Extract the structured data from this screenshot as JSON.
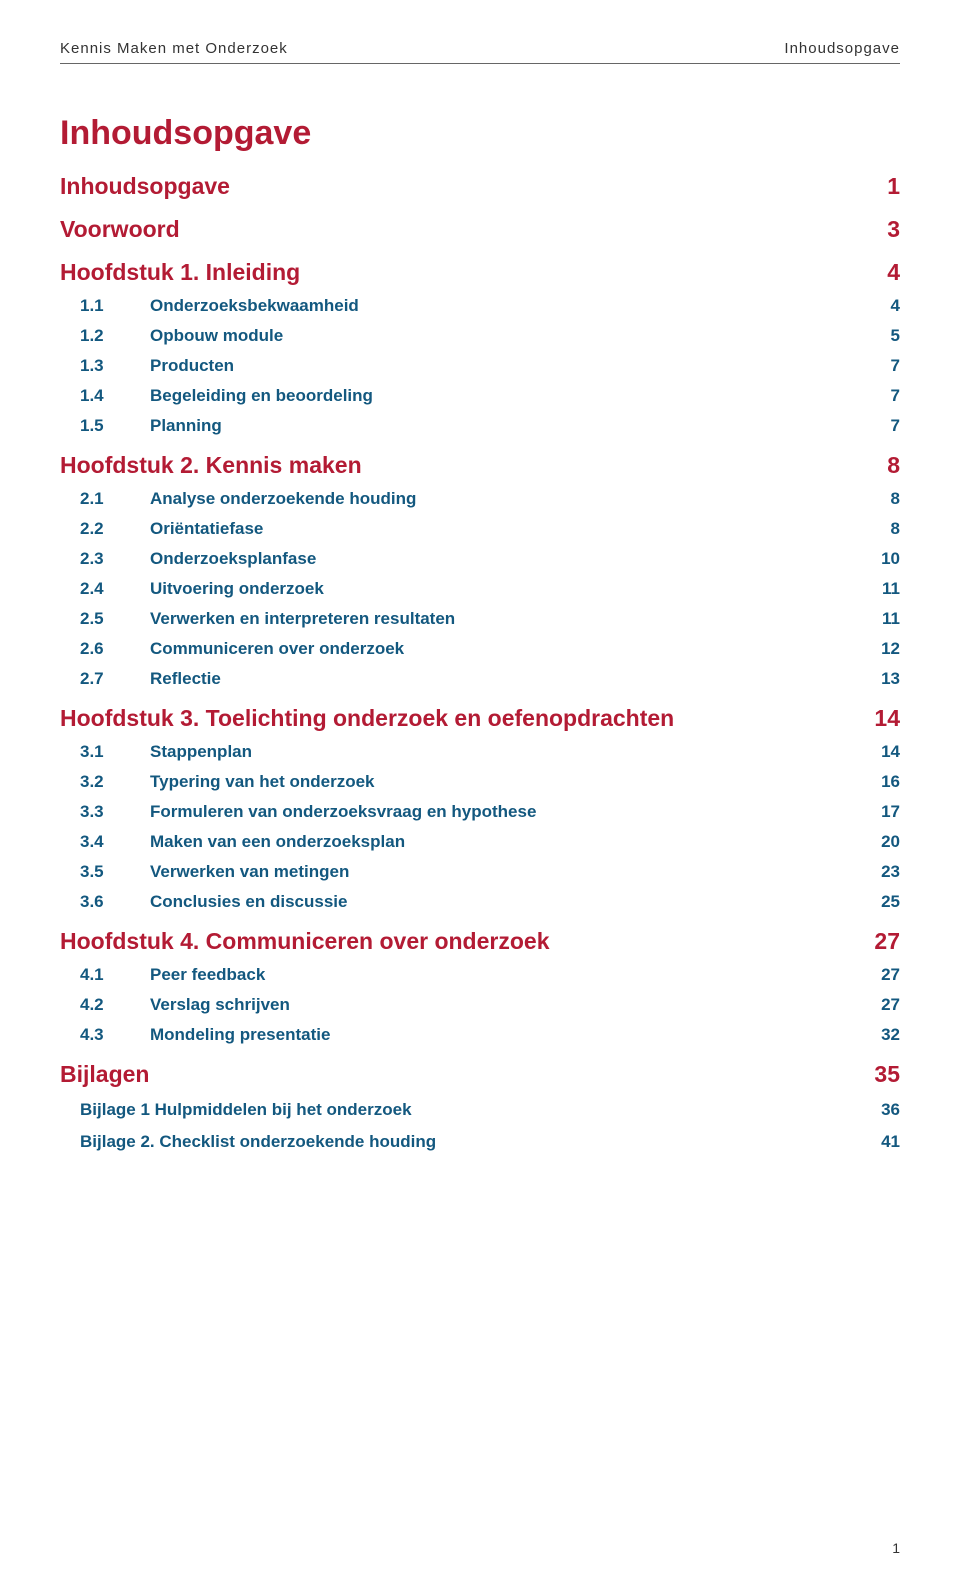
{
  "header": {
    "left": "Kennis Maken met Onderzoek",
    "right": "Inhoudsopgave"
  },
  "main_title": "Inhoudsopgave",
  "colors": {
    "chapter": "#b31b34",
    "sub": "#13587f",
    "header_text": "#333333",
    "rule": "#666666",
    "background": "#ffffff"
  },
  "toc": [
    {
      "type": "chapter",
      "label": "Inhoudsopgave",
      "page": "1"
    },
    {
      "type": "chapter",
      "label": "Voorwoord",
      "page": "3"
    },
    {
      "type": "chapter",
      "label": "Hoofdstuk 1. Inleiding",
      "page": "4"
    },
    {
      "type": "sub",
      "num": "1.1",
      "label": "Onderzoeksbekwaamheid",
      "page": "4"
    },
    {
      "type": "sub",
      "num": "1.2",
      "label": "Opbouw module",
      "page": "5"
    },
    {
      "type": "sub",
      "num": "1.3",
      "label": "Producten",
      "page": "7"
    },
    {
      "type": "sub",
      "num": "1.4",
      "label": "Begeleiding en beoordeling",
      "page": "7"
    },
    {
      "type": "sub",
      "num": "1.5",
      "label": "Planning",
      "page": "7"
    },
    {
      "type": "chapter",
      "label": "Hoofdstuk 2. Kennis maken",
      "page": "8"
    },
    {
      "type": "sub",
      "num": "2.1",
      "label": "Analyse onderzoekende houding",
      "page": "8"
    },
    {
      "type": "sub",
      "num": "2.2",
      "label": "Oriëntatiefase",
      "page": "8"
    },
    {
      "type": "sub",
      "num": "2.3",
      "label": "Onderzoeksplanfase",
      "page": "10"
    },
    {
      "type": "sub",
      "num": "2.4",
      "label": "Uitvoering onderzoek",
      "page": "11"
    },
    {
      "type": "sub",
      "num": "2.5",
      "label": "Verwerken en interpreteren resultaten",
      "page": "11"
    },
    {
      "type": "sub",
      "num": "2.6",
      "label": "Communiceren over onderzoek",
      "page": "12"
    },
    {
      "type": "sub",
      "num": "2.7",
      "label": "Reflectie",
      "page": "13"
    },
    {
      "type": "chapter",
      "label": "Hoofdstuk 3. Toelichting onderzoek en oefenopdrachten",
      "page": "14"
    },
    {
      "type": "sub",
      "num": "3.1",
      "label": "Stappenplan",
      "page": "14"
    },
    {
      "type": "sub",
      "num": "3.2",
      "label": "Typering van het onderzoek",
      "page": "16"
    },
    {
      "type": "sub",
      "num": "3.3",
      "label": "Formuleren van onderzoeksvraag en hypothese",
      "page": "17"
    },
    {
      "type": "sub",
      "num": "3.4",
      "label": "Maken van een onderzoeksplan",
      "page": "20"
    },
    {
      "type": "sub",
      "num": "3.5",
      "label": "Verwerken van metingen",
      "page": "23"
    },
    {
      "type": "sub",
      "num": "3.6",
      "label": "Conclusies en discussie",
      "page": "25"
    },
    {
      "type": "chapter",
      "label": "Hoofdstuk 4. Communiceren over onderzoek",
      "page": "27"
    },
    {
      "type": "sub",
      "num": "4.1",
      "label": "Peer feedback",
      "page": "27"
    },
    {
      "type": "sub",
      "num": "4.2",
      "label": "Verslag schrijven",
      "page": "27"
    },
    {
      "type": "sub",
      "num": "4.3",
      "label": "Mondeling presentatie",
      "page": "32"
    },
    {
      "type": "chapter",
      "label": "Bijlagen",
      "page": "35"
    },
    {
      "type": "appendix",
      "label": "Bijlage 1 Hulpmiddelen bij het onderzoek",
      "page": "36"
    },
    {
      "type": "appendix",
      "label": "Bijlage 2. Checklist onderzoekende houding",
      "page": "41"
    }
  ],
  "footer_page": "1"
}
